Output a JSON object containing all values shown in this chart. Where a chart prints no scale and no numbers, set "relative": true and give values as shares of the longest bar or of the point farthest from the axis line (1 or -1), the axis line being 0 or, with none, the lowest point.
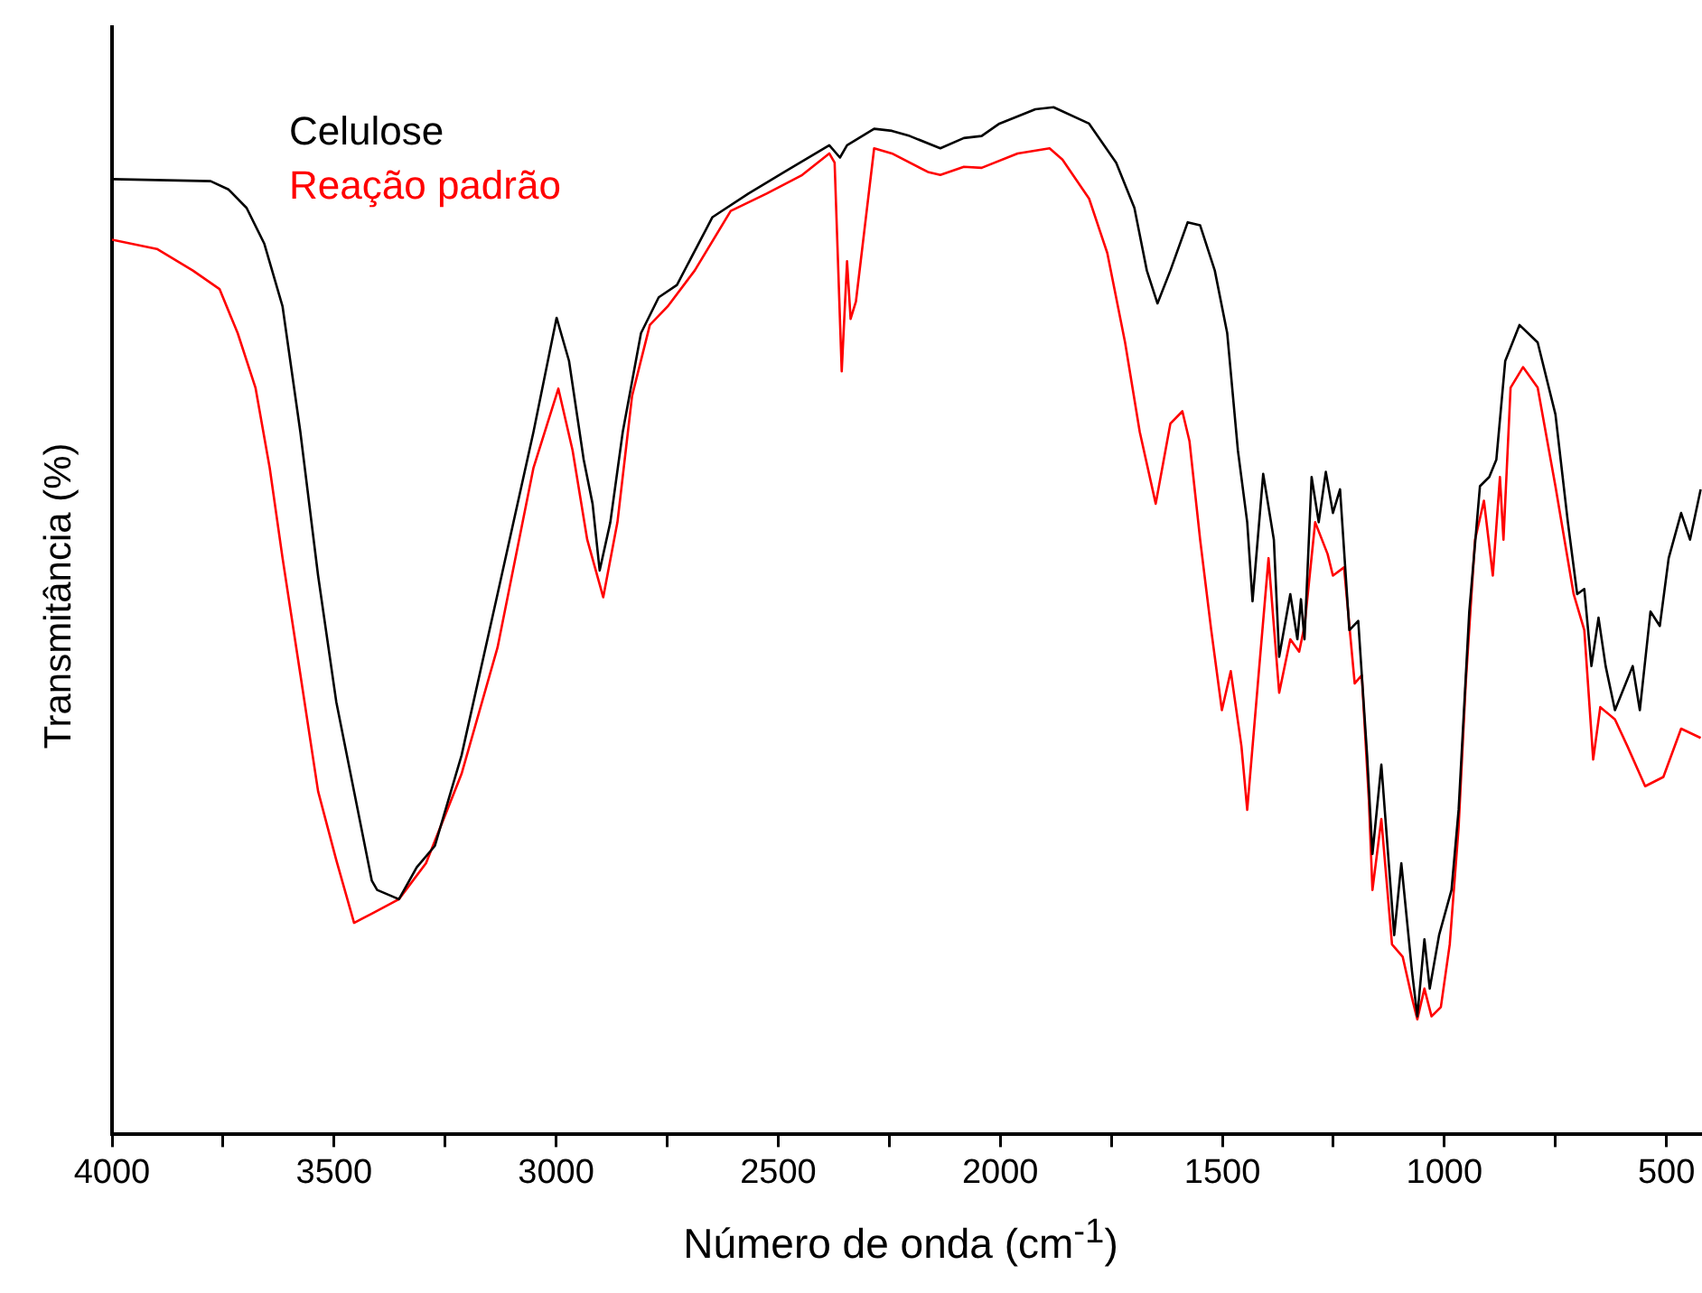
{
  "chart_data": {
    "type": "line",
    "xlabel": "Número de onda (cm$^{-1}$)",
    "ylabel": "Transmitância (%)",
    "relative": true,
    "legend": "top left",
    "marker": "none",
    "line_style": "solid",
    "grid": false,
    "xlim": [
      4000,
      420
    ],
    "xticks": [
      4000,
      {
        "value": 3750,
        "label": null
      },
      3500,
      {
        "value": 3250,
        "label": null
      },
      3000,
      {
        "value": 2750,
        "label": null
      },
      2500,
      {
        "value": 2250,
        "label": null
      },
      2000,
      {
        "value": 1750,
        "label": null
      },
      1500,
      {
        "value": 1250,
        "label": null
      },
      1000,
      {
        "value": 750,
        "label": null
      },
      500
    ],
    "series": [
      {
        "name": "Celulose",
        "color": "#000000",
        "x": [
          4000,
          3778,
          3738,
          3697,
          3657,
          3616,
          3576,
          3536,
          3495,
          3455,
          3415,
          3403,
          3354,
          3314,
          3273,
          3213,
          3132,
          3051,
          2999,
          2971,
          2938,
          2918,
          2902,
          2878,
          2850,
          2809,
          2769,
          2728,
          2648,
          2567,
          2486,
          2385,
          2361,
          2345,
          2284,
          2244,
          2204,
          2135,
          2082,
          2042,
          2002,
          1921,
          1880,
          1800,
          1739,
          1698,
          1670,
          1646,
          1617,
          1578,
          1550,
          1517,
          1489,
          1465,
          1444,
          1432,
          1408,
          1384,
          1372,
          1347,
          1331,
          1323,
          1315,
          1299,
          1283,
          1267,
          1251,
          1235,
          1214,
          1194,
          1174,
          1162,
          1142,
          1113,
          1097,
          1073,
          1061,
          1045,
          1033,
          1012,
          984,
          968,
          944,
          920,
          899,
          883,
          863,
          831,
          790,
          750,
          722,
          701,
          685,
          669,
          653,
          637,
          616,
          576,
          560,
          536,
          515,
          495,
          467,
          447,
          423
        ],
        "values": [
          0.93,
          0.928,
          0.92,
          0.902,
          0.867,
          0.806,
          0.684,
          0.544,
          0.421,
          0.334,
          0.247,
          0.238,
          0.229,
          0.26,
          0.281,
          0.369,
          0.526,
          0.684,
          0.795,
          0.753,
          0.657,
          0.614,
          0.549,
          0.596,
          0.684,
          0.78,
          0.815,
          0.827,
          0.893,
          0.916,
          0.937,
          0.963,
          0.951,
          0.963,
          0.979,
          0.977,
          0.972,
          0.96,
          0.97,
          0.972,
          0.984,
          0.998,
          1,
          0.984,
          0.946,
          0.902,
          0.841,
          0.809,
          0.841,
          0.888,
          0.885,
          0.841,
          0.78,
          0.666,
          0.596,
          0.519,
          0.643,
          0.579,
          0.465,
          0.526,
          0.482,
          0.521,
          0.482,
          0.64,
          0.596,
          0.645,
          0.605,
          0.628,
          0.491,
          0.5,
          0.369,
          0.273,
          0.36,
          0.194,
          0.264,
          0.159,
          0.115,
          0.19,
          0.142,
          0.194,
          0.238,
          0.316,
          0.509,
          0.631,
          0.64,
          0.657,
          0.753,
          0.788,
          0.771,
          0.701,
          0.596,
          0.526,
          0.531,
          0.456,
          0.503,
          0.456,
          0.413,
          0.456,
          0.413,
          0.509,
          0.495,
          0.561,
          0.605,
          0.579,
          0.628
        ]
      },
      {
        "name": "Reação padrão",
        "color": "#ff0000",
        "x": [
          4000,
          3899,
          3818,
          3758,
          3717,
          3677,
          3645,
          3616,
          3576,
          3536,
          3495,
          3455,
          3415,
          3354,
          3293,
          3213,
          3132,
          3051,
          2995,
          2963,
          2930,
          2894,
          2862,
          2829,
          2789,
          2749,
          2688,
          2607,
          2526,
          2446,
          2385,
          2373,
          2357,
          2345,
          2337,
          2325,
          2284,
          2244,
          2163,
          2135,
          2082,
          2042,
          1961,
          1889,
          1860,
          1800,
          1759,
          1719,
          1686,
          1650,
          1617,
          1590,
          1574,
          1550,
          1525,
          1501,
          1481,
          1457,
          1444,
          1420,
          1396,
          1384,
          1372,
          1347,
          1327,
          1315,
          1291,
          1263,
          1251,
          1226,
          1202,
          1186,
          1170,
          1162,
          1142,
          1118,
          1094,
          1073,
          1061,
          1045,
          1029,
          1008,
          988,
          968,
          952,
          931,
          911,
          891,
          875,
          867,
          851,
          823,
          790,
          750,
          709,
          685,
          665,
          649,
          616,
          588,
          548,
          507,
          467,
          423
        ],
        "values": [
          0.871,
          0.862,
          0.841,
          0.823,
          0.78,
          0.727,
          0.649,
          0.561,
          0.448,
          0.334,
          0.267,
          0.206,
          0.215,
          0.229,
          0.264,
          0.351,
          0.474,
          0.649,
          0.726,
          0.666,
          0.579,
          0.523,
          0.596,
          0.719,
          0.788,
          0.806,
          0.841,
          0.899,
          0.916,
          0.934,
          0.955,
          0.946,
          0.743,
          0.85,
          0.794,
          0.811,
          0.96,
          0.955,
          0.937,
          0.934,
          0.942,
          0.941,
          0.955,
          0.96,
          0.949,
          0.911,
          0.858,
          0.771,
          0.684,
          0.614,
          0.692,
          0.704,
          0.675,
          0.579,
          0.491,
          0.413,
          0.451,
          0.378,
          0.316,
          0.439,
          0.561,
          0.495,
          0.43,
          0.482,
          0.47,
          0.495,
          0.596,
          0.565,
          0.544,
          0.552,
          0.439,
          0.447,
          0.325,
          0.238,
          0.307,
          0.185,
          0.173,
          0.133,
          0.112,
          0.142,
          0.115,
          0.124,
          0.185,
          0.299,
          0.439,
          0.579,
          0.617,
          0.544,
          0.64,
          0.579,
          0.727,
          0.747,
          0.727,
          0.631,
          0.526,
          0.491,
          0.365,
          0.416,
          0.404,
          0.378,
          0.339,
          0.348,
          0.395,
          0.386
        ]
      }
    ]
  }
}
